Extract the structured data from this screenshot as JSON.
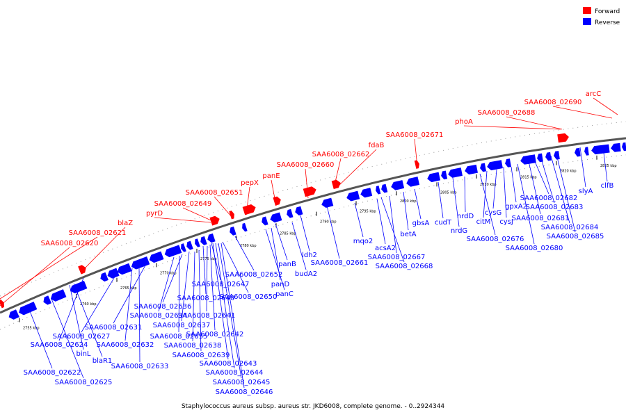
{
  "legend": {
    "forward_label": "Forward",
    "reverse_label": "Reverse"
  },
  "caption": "Staphylococcus aureus subsp. aureus str. JKD6008, complete genome. - 0..2924344",
  "colors": {
    "forward": "#ff0000",
    "reverse": "#0000ff",
    "backbone": "#777777"
  },
  "ticks": [
    "2755 kbp",
    "2760 kbp",
    "2765 kbp",
    "2770 kbp",
    "2775 kbp",
    "2780 kbp",
    "2785 kbp",
    "2790 kbp",
    "2795 kbp",
    "2800 kbp",
    "2805 kbp",
    "2810 kbp",
    "2815 kbp",
    "2820 kbp",
    "2825 kbp"
  ],
  "forward_labels": [
    "arcC",
    "SAA6008_02690",
    "SAA6008_02688",
    "phoA",
    "SAA6008_02671",
    "fdaB",
    "SAA6008_02662",
    "SAA6008_02660",
    "panE",
    "pepX",
    "SAA6008_02651",
    "SAA6008_02649",
    "pyrD",
    "blaZ",
    "SAA6008_02621",
    "SAA6008_02620"
  ],
  "reverse_labels": [
    "clfB",
    "slyA",
    "SAA6008_02682",
    "SAA6008_02683",
    "SAA6008_02681",
    "SAA6008_02684",
    "SAA6008_02685",
    "SAA6008_02680",
    "gpxA2",
    "cysJ",
    "cysG",
    "citM",
    "SAA6008_02676",
    "nrdD",
    "nrdG",
    "cudT",
    "gbsA",
    "betA",
    "SAA6008_02667",
    "SAA6008_02668",
    "acsA2",
    "mqo2",
    "SAA6008_02661",
    "ldh2",
    "budA2",
    "panB",
    "panD",
    "panC",
    "SAA6008_02652",
    "SAA6008_02650",
    "SAA6008_02647",
    "SAA6008_02640",
    "SAA6008_02641",
    "SAA6008_02642",
    "SAA6008_02643",
    "SAA6008_02644",
    "SAA6008_02645",
    "SAA6008_02646",
    "SAA6008_02636",
    "SAA6008_02637",
    "SAA6008_02638",
    "SAA6008_02639",
    "SAA6008_02634",
    "SAA6008_02635",
    "SAA6008_02631",
    "SAA6008_02627",
    "SAA6008_02632",
    "SAA6008_02633",
    "SAA6008_02624",
    "binL",
    "blaR1",
    "SAA6008_02622",
    "SAA6008_02625"
  ]
}
